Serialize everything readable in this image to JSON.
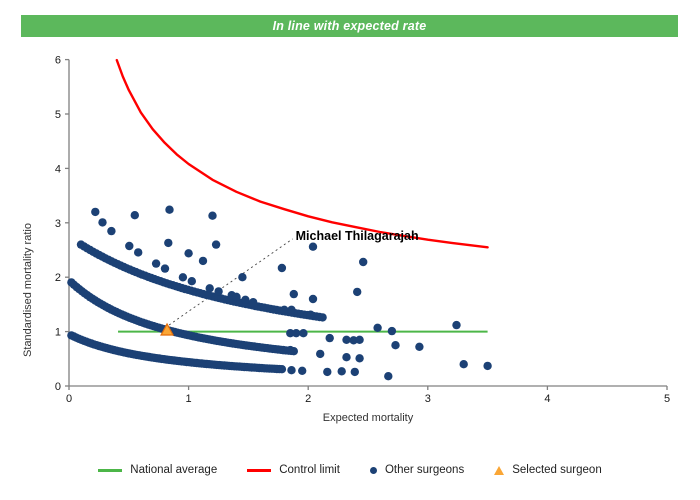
{
  "header": {
    "title": "In line with expected rate",
    "bar_color": "#5CB85C"
  },
  "legend": {
    "items": [
      {
        "label": "National average",
        "swatch": "line",
        "color": "#4CB648"
      },
      {
        "label": "Control limit",
        "swatch": "line",
        "color": "#FF0000"
      },
      {
        "label": "Other surgeons",
        "swatch": "dot",
        "color": "#1C4175"
      },
      {
        "label": "Selected surgeon",
        "swatch": "triangle",
        "color": "#FAA635"
      }
    ]
  },
  "chart_data": {
    "type": "scatter",
    "xlabel": "Expected mortality",
    "ylabel": "Standardised mortality ratio",
    "xlim": [
      0,
      5
    ],
    "ylim": [
      0,
      6
    ],
    "x_ticks": [
      0,
      1,
      2,
      3,
      4,
      5
    ],
    "y_ticks": [
      0,
      1,
      2,
      3,
      4,
      5,
      6
    ],
    "grid": false,
    "axis_color": "#808080",
    "tick_label_color": "#1a1a1a",
    "national_average": {
      "y": 1,
      "x_start": 0.41,
      "x_end": 3.5,
      "color": "#4CB648"
    },
    "control_limit": {
      "color": "#FF0000",
      "points": [
        [
          0.4,
          5.99
        ],
        [
          0.45,
          5.69
        ],
        [
          0.5,
          5.44
        ],
        [
          0.6,
          5.03
        ],
        [
          0.7,
          4.72
        ],
        [
          0.8,
          4.47
        ],
        [
          0.9,
          4.26
        ],
        [
          1.0,
          4.08
        ],
        [
          1.2,
          3.79
        ],
        [
          1.4,
          3.57
        ],
        [
          1.6,
          3.39
        ],
        [
          1.8,
          3.25
        ],
        [
          2.0,
          3.12
        ],
        [
          2.2,
          3.01
        ],
        [
          2.4,
          2.92
        ],
        [
          2.6,
          2.83
        ],
        [
          2.8,
          2.76
        ],
        [
          3.0,
          2.69
        ],
        [
          3.2,
          2.63
        ],
        [
          3.5,
          2.55
        ]
      ]
    },
    "other_surgeons": {
      "color": "#1C4175",
      "dot_radius": 4.2,
      "bands": [
        {
          "k": 0.81,
          "a": 0.85,
          "x_start": 0.02,
          "x_end": 1.78,
          "n": 85
        },
        {
          "k": 1.79,
          "a": 0.92,
          "x_start": 0.02,
          "x_end": 1.88,
          "n": 85
        },
        {
          "k": 4.94,
          "a": 1.8,
          "x_start": 0.1,
          "x_end": 2.12,
          "n": 80
        },
        {
          "k": 4.0,
          "a": 1.05,
          "x_start": 0.28,
          "x_end": 1.55,
          "n": 18,
          "gapped": true
        }
      ],
      "points": [
        [
          0.22,
          3.2
        ],
        [
          0.55,
          3.14
        ],
        [
          0.84,
          3.24
        ],
        [
          1.2,
          3.13
        ],
        [
          0.83,
          2.63
        ],
        [
          1.0,
          2.44
        ],
        [
          1.12,
          2.3
        ],
        [
          1.23,
          2.6
        ],
        [
          1.36,
          1.67
        ],
        [
          1.4,
          1.64
        ],
        [
          1.54,
          1.54
        ],
        [
          1.45,
          2.0
        ],
        [
          1.78,
          2.17
        ],
        [
          2.04,
          2.56
        ],
        [
          2.46,
          2.28
        ],
        [
          1.88,
          1.69
        ],
        [
          2.04,
          1.6
        ],
        [
          2.41,
          1.73
        ],
        [
          1.8,
          1.4
        ],
        [
          1.86,
          1.4
        ],
        [
          2.02,
          1.31
        ],
        [
          1.85,
          0.97
        ],
        [
          1.9,
          0.97
        ],
        [
          1.96,
          0.97
        ],
        [
          2.18,
          0.88
        ],
        [
          2.32,
          0.85
        ],
        [
          2.38,
          0.84
        ],
        [
          2.43,
          0.85
        ],
        [
          2.58,
          1.07
        ],
        [
          2.7,
          1.01
        ],
        [
          2.73,
          0.75
        ],
        [
          2.93,
          0.72
        ],
        [
          1.79,
          0.66
        ],
        [
          1.85,
          0.66
        ],
        [
          2.1,
          0.59
        ],
        [
          2.32,
          0.53
        ],
        [
          2.43,
          0.51
        ],
        [
          1.86,
          0.29
        ],
        [
          1.95,
          0.28
        ],
        [
          2.16,
          0.26
        ],
        [
          2.28,
          0.27
        ],
        [
          2.39,
          0.26
        ],
        [
          2.67,
          0.18
        ],
        [
          3.24,
          1.12
        ],
        [
          3.3,
          0.4
        ],
        [
          3.5,
          0.37
        ]
      ]
    },
    "selected_surgeon": {
      "x": 0.82,
      "y": 1.03,
      "label": "Michael Thilagarajah",
      "color": "#FAA635",
      "border_color": "#E36C09",
      "label_x": 1.87,
      "label_y": 2.76
    }
  }
}
